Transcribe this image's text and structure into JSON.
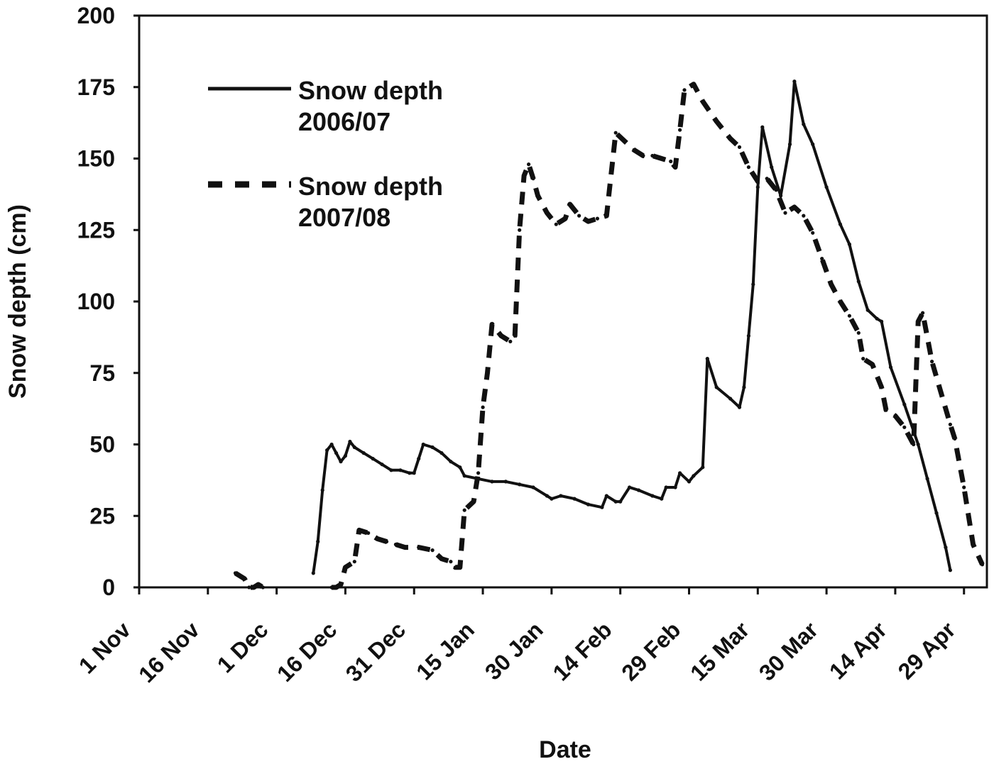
{
  "chart_data": {
    "type": "line",
    "title": "",
    "xlabel": "Date",
    "ylabel": "Snow depth (cm)",
    "ylim": [
      0,
      200
    ],
    "yticks": [
      0,
      25,
      50,
      75,
      100,
      125,
      150,
      175,
      200
    ],
    "xlim": [
      "1 Nov",
      "4 May"
    ],
    "xtick_labels": [
      "1 Nov",
      "16 Nov",
      "1 Dec",
      "16 Dec",
      "31 Dec",
      "15 Jan",
      "30 Jan",
      "14 Feb",
      "29 Feb",
      "15 Mar",
      "30 Mar",
      "14 Apr",
      "29 Apr"
    ],
    "grid": false,
    "legend_position": "top-left",
    "series": [
      {
        "name": "Snow depth 2006/07",
        "style": "solid",
        "color": "#111111",
        "points": [
          [
            "9 Dec",
            5
          ],
          [
            "10 Dec",
            16
          ],
          [
            "11 Dec",
            34
          ],
          [
            "12 Dec",
            48
          ],
          [
            "13 Dec",
            50
          ],
          [
            "14 Dec",
            47
          ],
          [
            "15 Dec",
            44
          ],
          [
            "16 Dec",
            46
          ],
          [
            "17 Dec",
            51
          ],
          [
            "18 Dec",
            49
          ],
          [
            "20 Dec",
            47
          ],
          [
            "22 Dec",
            45
          ],
          [
            "24 Dec",
            43
          ],
          [
            "26 Dec",
            41
          ],
          [
            "28 Dec",
            41
          ],
          [
            "30 Dec",
            40
          ],
          [
            "31 Dec",
            40
          ],
          [
            "1 Jan",
            45
          ],
          [
            "2 Jan",
            50
          ],
          [
            "4 Jan",
            49
          ],
          [
            "6 Jan",
            47
          ],
          [
            "8 Jan",
            44
          ],
          [
            "10 Jan",
            42
          ],
          [
            "11 Jan",
            39
          ],
          [
            "14 Jan",
            38
          ],
          [
            "17 Jan",
            37
          ],
          [
            "20 Jan",
            37
          ],
          [
            "23 Jan",
            36
          ],
          [
            "26 Jan",
            35
          ],
          [
            "29 Jan",
            32
          ],
          [
            "30 Jan",
            31
          ],
          [
            "1 Feb",
            32
          ],
          [
            "4 Feb",
            31
          ],
          [
            "7 Feb",
            29
          ],
          [
            "10 Feb",
            28
          ],
          [
            "11 Feb",
            32
          ],
          [
            "13 Feb",
            30
          ],
          [
            "14 Feb",
            30
          ],
          [
            "16 Feb",
            35
          ],
          [
            "18 Feb",
            34
          ],
          [
            "21 Feb",
            32
          ],
          [
            "23 Feb",
            31
          ],
          [
            "24 Feb",
            35
          ],
          [
            "26 Feb",
            35
          ],
          [
            "27 Feb",
            40
          ],
          [
            "29 Feb",
            37
          ],
          [
            "1 Mar",
            39
          ],
          [
            "3 Mar",
            42
          ],
          [
            "4 Mar",
            80
          ],
          [
            "6 Mar",
            70
          ],
          [
            "9 Mar",
            66
          ],
          [
            "11 Mar",
            63
          ],
          [
            "12 Mar",
            70
          ],
          [
            "13 Mar",
            88
          ],
          [
            "14 Mar",
            106
          ],
          [
            "15 Mar",
            140
          ],
          [
            "16 Mar",
            161
          ],
          [
            "18 Mar",
            147
          ],
          [
            "20 Mar",
            137
          ],
          [
            "22 Mar",
            155
          ],
          [
            "23 Mar",
            177
          ],
          [
            "25 Mar",
            162
          ],
          [
            "27 Mar",
            155
          ],
          [
            "30 Mar",
            140
          ],
          [
            "2 Apr",
            127
          ],
          [
            "4 Apr",
            120
          ],
          [
            "6 Apr",
            107
          ],
          [
            "8 Apr",
            97
          ],
          [
            "10 Apr",
            94
          ],
          [
            "11 Apr",
            93
          ],
          [
            "13 Apr",
            77
          ],
          [
            "16 Apr",
            64
          ],
          [
            "19 Apr",
            50
          ],
          [
            "21 Apr",
            38
          ],
          [
            "23 Apr",
            26
          ],
          [
            "25 Apr",
            14
          ],
          [
            "26 Apr",
            6
          ]
        ]
      },
      {
        "name": "Snow depth 2007/08",
        "style": "dashed",
        "color": "#111111",
        "points": [
          [
            "22 Nov",
            5
          ],
          [
            "24 Nov",
            3
          ],
          [
            "25 Nov",
            0
          ],
          [
            "26 Nov",
            0
          ],
          [
            "27 Nov",
            1
          ],
          [
            "28 Nov",
            0
          ],
          [
            "13 Dec",
            0
          ],
          [
            "14 Dec",
            0
          ],
          [
            "15 Dec",
            1
          ],
          [
            "16 Dec",
            7
          ],
          [
            "18 Dec",
            9
          ],
          [
            "19 Dec",
            20
          ],
          [
            "21 Dec",
            19
          ],
          [
            "23 Dec",
            17
          ],
          [
            "25 Dec",
            16
          ],
          [
            "27 Dec",
            15
          ],
          [
            "29 Dec",
            14
          ],
          [
            "1 Jan",
            14
          ],
          [
            "4 Jan",
            13
          ],
          [
            "6 Jan",
            10
          ],
          [
            "8 Jan",
            9
          ],
          [
            "9 Jan",
            7
          ],
          [
            "10 Jan",
            7
          ],
          [
            "11 Jan",
            27
          ],
          [
            "13 Jan",
            30
          ],
          [
            "14 Jan",
            40
          ],
          [
            "15 Jan",
            63
          ],
          [
            "16 Jan",
            75
          ],
          [
            "17 Jan",
            92
          ],
          [
            "19 Jan",
            88
          ],
          [
            "21 Jan",
            86
          ],
          [
            "22 Jan",
            88
          ],
          [
            "23 Jan",
            125
          ],
          [
            "24 Jan",
            144
          ],
          [
            "25 Jan",
            148
          ],
          [
            "26 Jan",
            143
          ],
          [
            "27 Jan",
            137
          ],
          [
            "29 Jan",
            131
          ],
          [
            "31 Jan",
            127
          ],
          [
            "2 Feb",
            129
          ],
          [
            "3 Feb",
            134
          ],
          [
            "5 Feb",
            130
          ],
          [
            "7 Feb",
            128
          ],
          [
            "9 Feb",
            129
          ],
          [
            "11 Feb",
            130
          ],
          [
            "13 Feb",
            159
          ],
          [
            "15 Feb",
            156
          ],
          [
            "17 Feb",
            153
          ],
          [
            "19 Feb",
            151
          ],
          [
            "21 Feb",
            151
          ],
          [
            "23 Feb",
            150
          ],
          [
            "25 Feb",
            149
          ],
          [
            "26 Feb",
            147
          ],
          [
            "27 Feb",
            160
          ],
          [
            "28 Feb",
            174
          ],
          [
            "1 Mar",
            176
          ],
          [
            "3 Mar",
            170
          ],
          [
            "6 Mar",
            163
          ],
          [
            "9 Mar",
            157
          ],
          [
            "11 Mar",
            154
          ],
          [
            "13 Mar",
            147
          ],
          [
            "15 Mar",
            142
          ],
          [
            "17 Mar",
            143
          ],
          [
            "19 Mar",
            139
          ],
          [
            "21 Mar",
            131
          ],
          [
            "23 Mar",
            133
          ],
          [
            "25 Mar",
            130
          ],
          [
            "27 Mar",
            124
          ],
          [
            "29 Mar",
            115
          ],
          [
            "31 Mar",
            106
          ],
          [
            "2 Apr",
            100
          ],
          [
            "4 Apr",
            95
          ],
          [
            "6 Apr",
            89
          ],
          [
            "7 Apr",
            80
          ],
          [
            "9 Apr",
            78
          ],
          [
            "11 Apr",
            70
          ],
          [
            "12 Apr",
            62
          ],
          [
            "14 Apr",
            60
          ],
          [
            "16 Apr",
            56
          ],
          [
            "18 Apr",
            50
          ],
          [
            "19 Apr",
            93
          ],
          [
            "20 Apr",
            96
          ],
          [
            "22 Apr",
            79
          ],
          [
            "24 Apr",
            68
          ],
          [
            "26 Apr",
            57
          ],
          [
            "27 Apr",
            52
          ],
          [
            "29 Apr",
            35
          ],
          [
            "1 May",
            15
          ],
          [
            "3 May",
            8
          ]
        ]
      }
    ]
  }
}
